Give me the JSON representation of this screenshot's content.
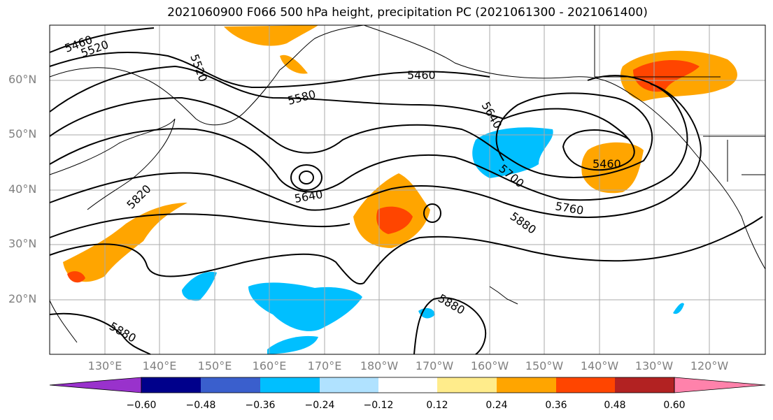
{
  "title": "2021060900 F066 500 hPa height, precipitation PC (2021061300 - 2021061400)",
  "lat_labels": [
    "60°N",
    "50°N",
    "40°N",
    "30°N",
    "20°N"
  ],
  "lon_labels": [
    "130°E",
    "140°E",
    "150°E",
    "160°E",
    "170°E",
    "180°W",
    "170°W",
    "160°W",
    "150°W",
    "140°W",
    "130°W",
    "120°W"
  ],
  "contour_labels": [
    "5460",
    "5520",
    "5520",
    "5460",
    "5580",
    "5640",
    "5640",
    "5460",
    "5700",
    "5760",
    "5820",
    "5880",
    "5880",
    "5880"
  ],
  "colorbar": {
    "ticks": [
      "−0.60",
      "−0.48",
      "−0.36",
      "−0.24",
      "−0.12",
      "0.12",
      "0.24",
      "0.36",
      "0.48",
      "0.60"
    ],
    "colors": [
      "#9932cc",
      "#00008b",
      "#3a5fcd",
      "#00bfff",
      "#b0e2ff",
      "#ffffff",
      "#ffec8b",
      "#ffa500",
      "#ff4500",
      "#b22222",
      "#ff82ab"
    ]
  }
}
